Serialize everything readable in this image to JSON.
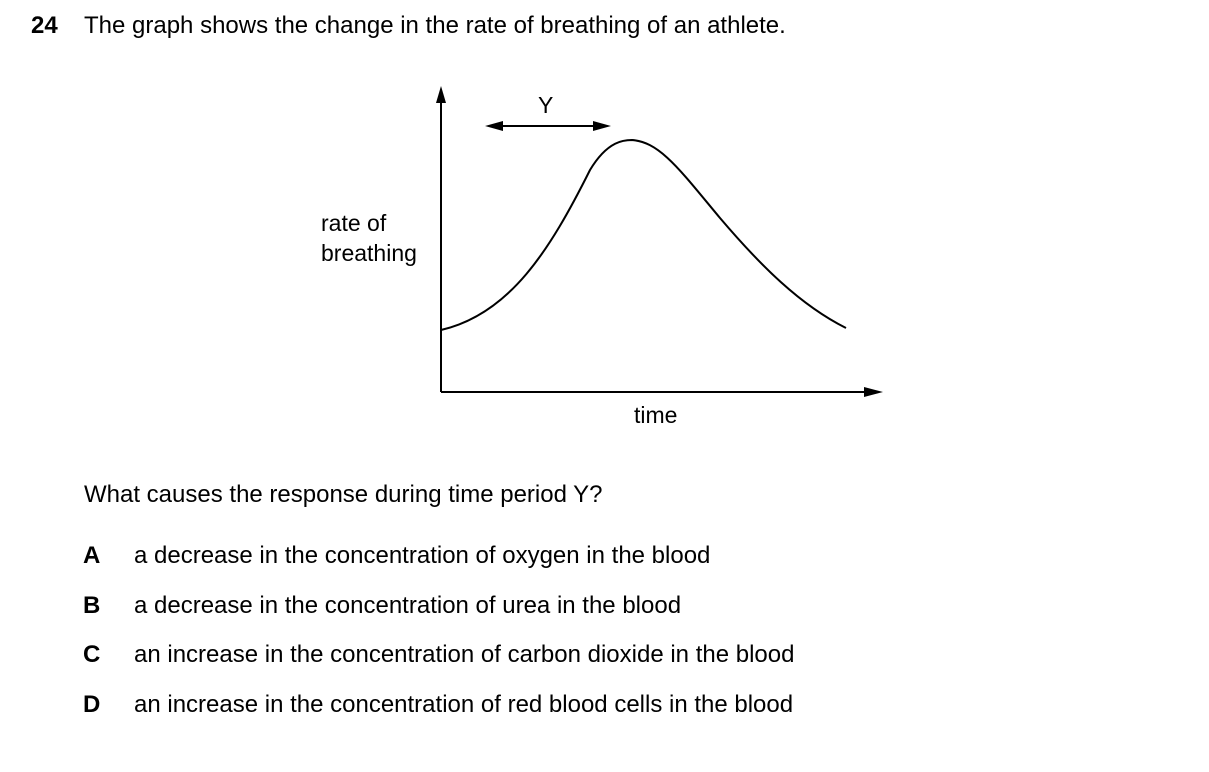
{
  "question": {
    "number": "24",
    "text": "The graph shows the change in the rate of breathing of an athlete."
  },
  "graph": {
    "y_axis_label_line1": "rate of",
    "y_axis_label_line2": "breathing",
    "x_axis_label": "time",
    "period_label": "Y"
  },
  "prompt": "What causes the response during time period Y?",
  "options": [
    {
      "letter": "A",
      "text": "a decrease in the concentration of oxygen in the blood"
    },
    {
      "letter": "B",
      "text": "a decrease in the concentration of urea in the blood"
    },
    {
      "letter": "C",
      "text": "an increase in the concentration of carbon dioxide in the blood"
    },
    {
      "letter": "D",
      "text": "an increase in the concentration of red blood cells in the blood"
    }
  ]
}
